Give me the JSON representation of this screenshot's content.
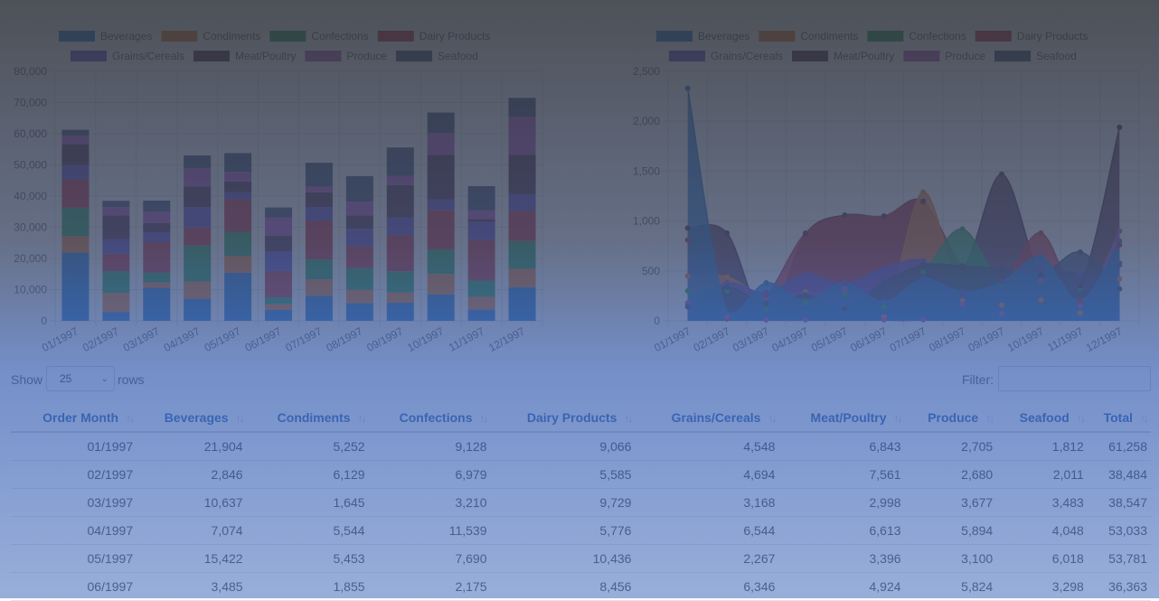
{
  "colors": {
    "Beverages": "#2f7fd2",
    "Condiments": "#e8823a",
    "Confections": "#2fa360",
    "Dairy Products": "#c23a4b",
    "Grains/Cereals": "#6a56c8",
    "Meat/Poultry": "#5a3a55",
    "Produce": "#b45cbe",
    "Seafood": "#4a5878"
  },
  "categories": [
    "Beverages",
    "Condiments",
    "Confections",
    "Dairy Products",
    "Grains/Cereals",
    "Meat/Poultry",
    "Produce",
    "Seafood"
  ],
  "months": [
    "01/1997",
    "02/1997",
    "03/1997",
    "04/1997",
    "05/1997",
    "06/1997",
    "07/1997",
    "08/1997",
    "09/1997",
    "10/1997",
    "11/1997",
    "12/1997"
  ],
  "chart_data": [
    {
      "type": "bar",
      "stacked": true,
      "categories": [
        "01/1997",
        "02/1997",
        "03/1997",
        "04/1997",
        "05/1997",
        "06/1997",
        "07/1997",
        "08/1997",
        "09/1997",
        "10/1997",
        "11/1997",
        "12/1997"
      ],
      "ylim": [
        0,
        80000
      ],
      "yticks": [
        "0",
        "10,000",
        "20,000",
        "30,000",
        "40,000",
        "50,000",
        "60,000",
        "70,000",
        "80,000"
      ],
      "grid": true,
      "legend": "top",
      "series": [
        {
          "name": "Beverages",
          "values": [
            21904,
            2846,
            10637,
            7074,
            15422,
            3485,
            8000,
            5700,
            5800,
            8500,
            3600,
            10800
          ]
        },
        {
          "name": "Condiments",
          "values": [
            5252,
            6129,
            1645,
            5544,
            5453,
            1855,
            5300,
            4300,
            3300,
            6500,
            4100,
            5900
          ]
        },
        {
          "name": "Confections",
          "values": [
            9128,
            6979,
            3210,
            11539,
            7690,
            2175,
            6400,
            6900,
            6800,
            7900,
            5200,
            8900
          ]
        },
        {
          "name": "Dairy Products",
          "values": [
            9066,
            5585,
            9729,
            5776,
            10436,
            8456,
            12500,
            7000,
            11500,
            12700,
            12900,
            9600
          ]
        },
        {
          "name": "Grains/Cereals",
          "values": [
            4548,
            4694,
            3168,
            6544,
            2267,
            6346,
            4300,
            5600,
            5700,
            3400,
            5900,
            5400
          ]
        },
        {
          "name": "Meat/Poultry",
          "values": [
            6843,
            7561,
            2998,
            6613,
            3396,
            4924,
            4700,
            4300,
            10400,
            14200,
            900,
            12700
          ]
        },
        {
          "name": "Produce",
          "values": [
            2705,
            2680,
            3677,
            5894,
            3100,
            5824,
            1900,
            4400,
            3000,
            7000,
            2800,
            12200
          ]
        },
        {
          "name": "Seafood",
          "values": [
            1812,
            2011,
            3483,
            4048,
            6018,
            3298,
            7600,
            8200,
            9100,
            6600,
            7800,
            6000
          ]
        }
      ]
    },
    {
      "type": "area",
      "categories": [
        "01/1997",
        "02/1997",
        "03/1997",
        "04/1997",
        "05/1997",
        "06/1997",
        "07/1997",
        "08/1997",
        "09/1997",
        "10/1997",
        "11/1997",
        "12/1997"
      ],
      "ylim": [
        0,
        2500
      ],
      "yticks": [
        "0",
        "500",
        "1,000",
        "1,500",
        "2,000",
        "2,500"
      ],
      "grid": true,
      "legend": "top",
      "series": [
        {
          "name": "Beverages",
          "values": [
            2330,
            80,
            380,
            200,
            380,
            190,
            420,
            290,
            390,
            640,
            200,
            800
          ]
        },
        {
          "name": "Condiments",
          "values": [
            450,
            440,
            240,
            290,
            280,
            40,
            1290,
            200,
            160,
            210,
            80,
            420
          ]
        },
        {
          "name": "Confections",
          "values": [
            300,
            300,
            120,
            180,
            270,
            140,
            490,
            920,
            360,
            400,
            330,
            580
          ]
        },
        {
          "name": "Dairy Products",
          "values": [
            810,
            20,
            250,
            880,
            1050,
            1050,
            1190,
            550,
            400,
            880,
            200,
            760
          ]
        },
        {
          "name": "Grains/Cereals",
          "values": [
            160,
            380,
            280,
            470,
            370,
            530,
            600,
            280,
            390,
            510,
            480,
            560
          ]
        },
        {
          "name": "Meat/Poultry",
          "values": [
            930,
            880,
            10,
            870,
            1060,
            1050,
            1200,
            540,
            1470,
            440,
            350,
            1940
          ]
        },
        {
          "name": "Produce",
          "values": [
            180,
            40,
            10,
            10,
            320,
            10,
            10,
            170,
            70,
            410,
            150,
            900
          ]
        },
        {
          "name": "Seafood",
          "values": [
            140,
            340,
            170,
            260,
            120,
            390,
            560,
            550,
            520,
            460,
            690,
            320
          ]
        }
      ]
    }
  ],
  "controls": {
    "show_label": "Show",
    "rows_value": "25",
    "rows_label": "rows",
    "filter_label": "Filter:",
    "filter_value": ""
  },
  "table": {
    "headers": [
      "Order Month",
      "Beverages",
      "Condiments",
      "Confections",
      "Dairy Products",
      "Grains/Cereals",
      "Meat/Poultry",
      "Produce",
      "Seafood",
      "Total"
    ],
    "rows": [
      [
        "01/1997",
        "21,904",
        "5,252",
        "9,128",
        "9,066",
        "4,548",
        "6,843",
        "2,705",
        "1,812",
        "61,258"
      ],
      [
        "02/1997",
        "2,846",
        "6,129",
        "6,979",
        "5,585",
        "4,694",
        "7,561",
        "2,680",
        "2,011",
        "38,484"
      ],
      [
        "03/1997",
        "10,637",
        "1,645",
        "3,210",
        "9,729",
        "3,168",
        "2,998",
        "3,677",
        "3,483",
        "38,547"
      ],
      [
        "04/1997",
        "7,074",
        "5,544",
        "11,539",
        "5,776",
        "6,544",
        "6,613",
        "5,894",
        "4,048",
        "53,033"
      ],
      [
        "05/1997",
        "15,422",
        "5,453",
        "7,690",
        "10,436",
        "2,267",
        "3,396",
        "3,100",
        "6,018",
        "53,781"
      ],
      [
        "06/1997",
        "3,485",
        "1,855",
        "2,175",
        "8,456",
        "6,346",
        "4,924",
        "5,824",
        "3,298",
        "36,363"
      ]
    ]
  }
}
